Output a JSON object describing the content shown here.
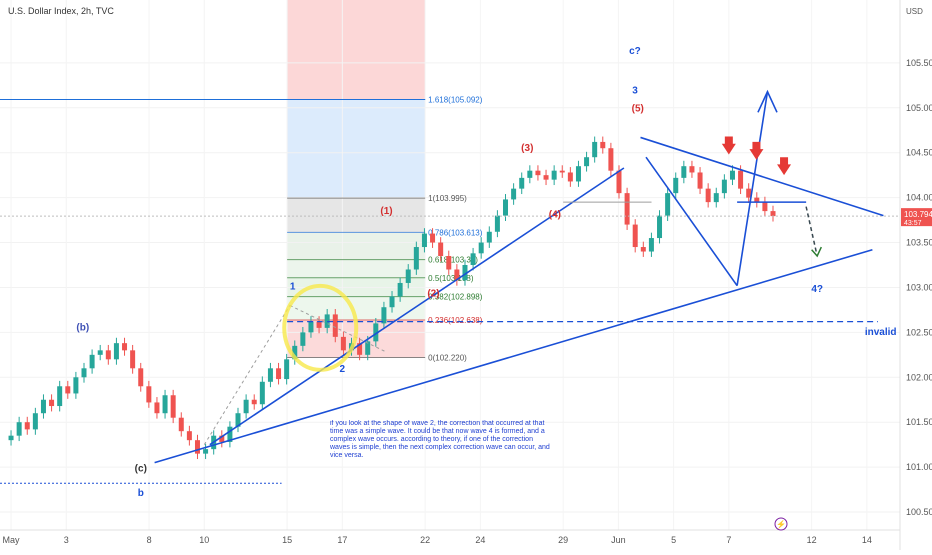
{
  "header": {
    "title": "U.S. Dollar Index, 2h, TVC"
  },
  "chart_data": {
    "type": "candlestick",
    "currency": "USD",
    "ylim": [
      100.3,
      106.2
    ],
    "y_ticks": [
      100.5,
      101.0,
      101.5,
      102.0,
      102.5,
      103.0,
      103.5,
      104.0,
      104.5,
      105.0,
      105.5
    ],
    "x_ticks": [
      {
        "label": "May",
        "x": 0
      },
      {
        "label": "3",
        "x": 2
      },
      {
        "label": "8",
        "x": 5
      },
      {
        "label": "10",
        "x": 7
      },
      {
        "label": "15",
        "x": 10
      },
      {
        "label": "17",
        "x": 12
      },
      {
        "label": "22",
        "x": 15
      },
      {
        "label": "24",
        "x": 17
      },
      {
        "label": "29",
        "x": 20
      },
      {
        "label": "Jun",
        "x": 22
      },
      {
        "label": "5",
        "x": 24
      },
      {
        "label": "7",
        "x": 26
      },
      {
        "label": "12",
        "x": 29
      },
      {
        "label": "14",
        "x": 31
      }
    ],
    "price_tag": {
      "price": "103.794",
      "countdown": "43:57",
      "value": 103.794
    },
    "fib_levels": [
      {
        "label": "1.618(105.092)",
        "value": 105.092
      },
      {
        "label": "1(103.995)",
        "value": 103.995
      },
      {
        "label": "0.786(103.613)",
        "value": 103.613
      },
      {
        "label": "0.618(103.31)",
        "value": 103.31
      },
      {
        "label": "0.5(103.108)",
        "value": 103.108
      },
      {
        "label": "0.382(102.898)",
        "value": 102.898
      },
      {
        "label": "0.236(102.638)",
        "value": 102.638
      },
      {
        "label": "0(102.220)",
        "value": 102.22
      }
    ],
    "invalid_level": 102.62,
    "wave_labels": [
      {
        "text": "(b)",
        "x": 2.6,
        "y": 102.52,
        "color": "#3f51b5"
      },
      {
        "text": "(c)",
        "x": 4.7,
        "y": 100.95,
        "color": "#333"
      },
      {
        "text": "b",
        "x": 4.7,
        "y": 100.68,
        "color": "#1a4fd6"
      },
      {
        "text": "1",
        "x": 10.2,
        "y": 102.98,
        "color": "#1a4fd6"
      },
      {
        "text": "2",
        "x": 12.0,
        "y": 102.06,
        "color": "#1a4fd6"
      },
      {
        "text": "(1)",
        "x": 13.6,
        "y": 103.82,
        "color": "#d32f2f"
      },
      {
        "text": "(2)",
        "x": 15.3,
        "y": 102.9,
        "color": "#d32f2f"
      },
      {
        "text": "(3)",
        "x": 18.7,
        "y": 104.52,
        "color": "#d32f2f"
      },
      {
        "text": "(4)",
        "x": 19.7,
        "y": 103.78,
        "color": "#d32f2f"
      },
      {
        "text": "(5)",
        "x": 22.7,
        "y": 104.96,
        "color": "#d32f2f"
      },
      {
        "text": "3",
        "x": 22.6,
        "y": 105.16,
        "color": "#1a4fd6"
      },
      {
        "text": "c?",
        "x": 22.6,
        "y": 105.6,
        "color": "#1a4fd6"
      },
      {
        "text": "4?",
        "x": 29.2,
        "y": 102.95,
        "color": "#1a4fd6"
      },
      {
        "text": "invalid",
        "x": 31.5,
        "y": 102.47,
        "color": "#1a4fd6"
      }
    ],
    "note": "if you look at the shape of wave 2, the correction that occurred at that time was a simple wave. It could be that now wave 4 is formed, and a complex wave occurs. according to theory, if one of the correction waves is simple, then the next complex correction wave can occur, and vice versa.",
    "series": [
      {
        "name": "DXY",
        "values": [
          101.35,
          101.5,
          101.42,
          101.6,
          101.75,
          101.68,
          101.9,
          101.82,
          102.0,
          102.1,
          102.25,
          102.3,
          102.2,
          102.38,
          102.3,
          102.1,
          101.9,
          101.72,
          101.6,
          101.8,
          101.55,
          101.4,
          101.3,
          101.15,
          101.2,
          101.35,
          101.28,
          101.45,
          101.6,
          101.75,
          101.7,
          101.95,
          102.1,
          101.98,
          102.2,
          102.35,
          102.5,
          102.62,
          102.55,
          102.7,
          102.45,
          102.3,
          102.38,
          102.25,
          102.4,
          102.6,
          102.78,
          102.9,
          103.05,
          103.2,
          103.45,
          103.6,
          103.5,
          103.35,
          103.2,
          103.08,
          103.25,
          103.38,
          103.5,
          103.62,
          103.8,
          103.98,
          104.1,
          104.22,
          104.3,
          104.25,
          104.2,
          104.3,
          104.28,
          104.18,
          104.35,
          104.45,
          104.62,
          104.55,
          104.3,
          104.05,
          103.7,
          103.45,
          103.4,
          103.55,
          103.8,
          104.05,
          104.22,
          104.35,
          104.28,
          104.1,
          103.95,
          104.05,
          104.2,
          104.3,
          104.1,
          104.0,
          103.95,
          103.85,
          103.794
        ]
      }
    ]
  }
}
